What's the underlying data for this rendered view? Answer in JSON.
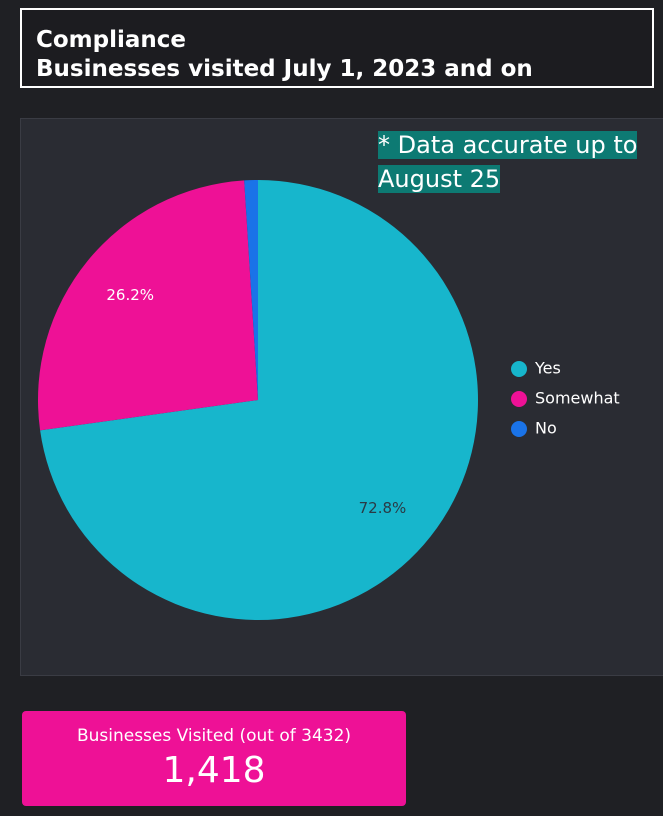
{
  "header": {
    "title": "Compliance",
    "subtitle": "Businesses visited July 1, 2023 and on"
  },
  "chart_data": {
    "type": "pie",
    "annotation": "* Data accurate up to August 25",
    "categories": [
      "Yes",
      "Somewhat",
      "No"
    ],
    "values": [
      72.8,
      26.2,
      1.0
    ],
    "value_labels": [
      "72.8%",
      "26.2%",
      null
    ],
    "colors": [
      "#17b6cc",
      "#ee1196",
      "#1a73e8"
    ],
    "legend": "right"
  },
  "kpi": {
    "label": "Businesses Visited (out of 3432)",
    "value": "1,418"
  }
}
